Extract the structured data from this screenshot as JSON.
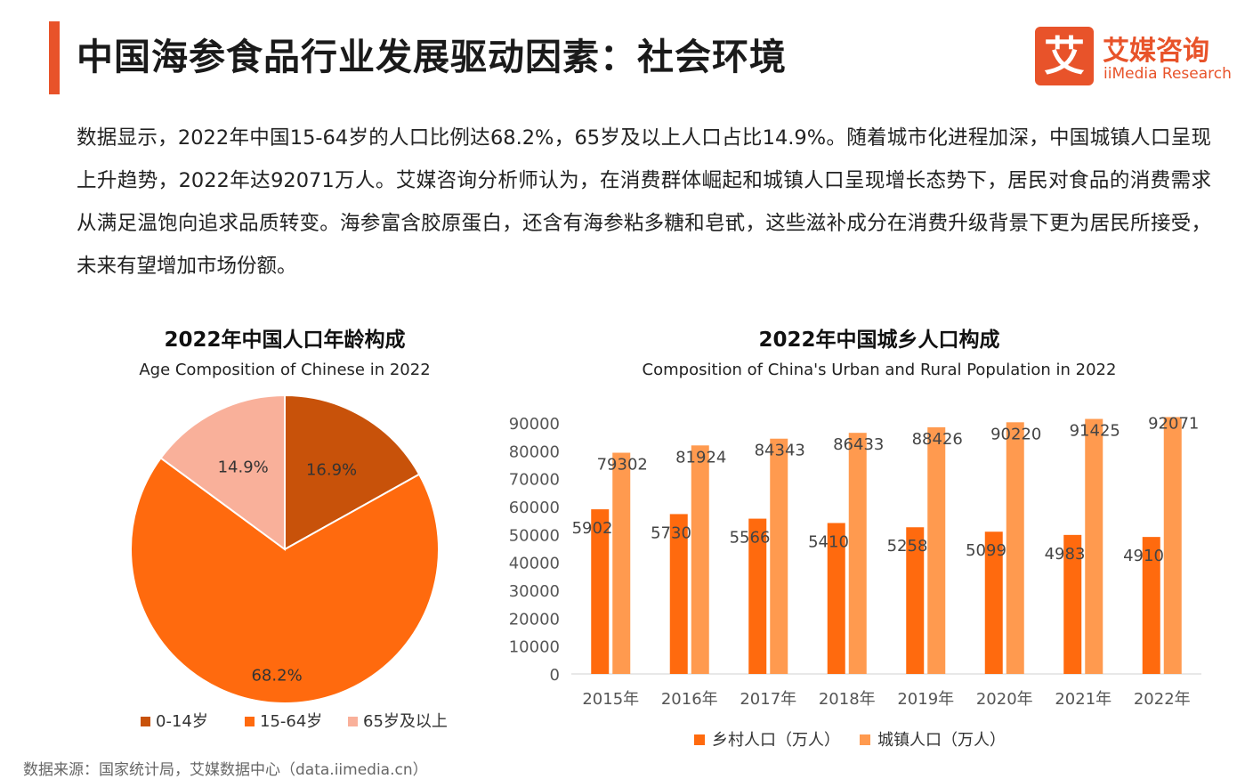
{
  "header": {
    "title": "中国海参食品行业发展驱动因素：社会环境",
    "logo_mark": "艾",
    "logo_cn": "艾媒咨询",
    "logo_en": "iiMedia Research"
  },
  "body_text": "数据显示，2022年中国15-64岁的人口比例达68.2%，65岁及以上人口占比14.9%。随着城市化进程加深，中国城镇人口呈现上升趋势，2022年达92071万人。艾媒咨询分析师认为，在消费群体崛起和城镇人口呈现增长态势下，居民对食品的消费需求从满足温饱向追求品质转变。海参富含胶原蛋白，还含有海参粘多糖和皂甙，这些滋补成分在消费升级背景下更为居民所接受，未来有望增加市场份额。",
  "colors": {
    "accent": "#e8532a",
    "pie_0_14": "#c8520a",
    "pie_15_64": "#ff6a0e",
    "pie_65": "#f9b09a",
    "rural": "#ff6a0e",
    "urban": "#ff9a4f"
  },
  "chart_data": [
    {
      "type": "pie",
      "title": "2022年中国人口年龄构成",
      "subtitle": "Age Composition of Chinese in 2022",
      "categories": [
        "0-14岁",
        "15-64岁",
        "65岁及以上"
      ],
      "values": [
        16.9,
        68.2,
        14.9
      ],
      "labels": [
        "16.9%",
        "68.2%",
        "14.9%"
      ],
      "legend_position": "bottom"
    },
    {
      "type": "bar",
      "title": "2022年中国城乡人口构成",
      "subtitle": "Composition of China's Urban and Rural Population in 2022",
      "categories": [
        "2015年",
        "2016年",
        "2017年",
        "2018年",
        "2019年",
        "2020年",
        "2021年",
        "2022年"
      ],
      "series": [
        {
          "name": "乡村人口（万人）",
          "values": [
            59024,
            57308,
            55668,
            54108,
            52582,
            50992,
            49835,
            49104
          ]
        },
        {
          "name": "城镇人口（万人）",
          "values": [
            79302,
            81924,
            84343,
            86433,
            88426,
            90220,
            91425,
            92071
          ]
        }
      ],
      "ylim": [
        0,
        90000
      ],
      "yticks": [
        "0",
        "10000",
        "20000",
        "30000",
        "40000",
        "50000",
        "60000",
        "70000",
        "80000",
        "90000"
      ],
      "legend_position": "bottom"
    }
  ],
  "source": "数据来源：国家统计局，艾媒数据中心（data.iimedia.cn）"
}
